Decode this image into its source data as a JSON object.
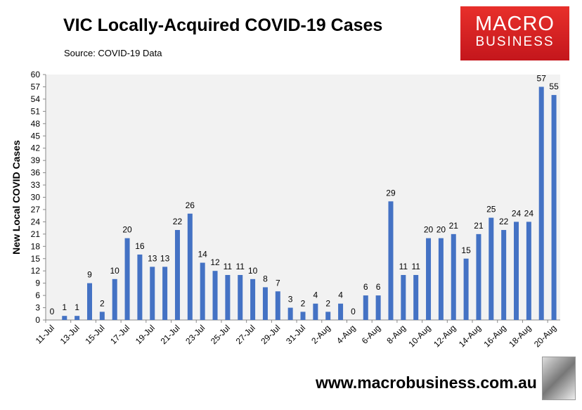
{
  "title": "VIC Locally-Acquired COVID-19 Cases",
  "source": "Source: COVID-19 Data",
  "logo": {
    "line1": "MACRO",
    "line2": "BUSINESS"
  },
  "url": "www.macrobusiness.com.au",
  "colors": {
    "bar": "#4472c4",
    "plot_bg": "#f2f2f2",
    "logo": "#d7261f"
  },
  "chart_data": {
    "type": "bar",
    "title": "VIC Locally-Acquired COVID-19 Cases",
    "ylabel": "New Local COVID Cases",
    "xlabel": "",
    "ylim": [
      0,
      60
    ],
    "ytick_step": 3,
    "grid": false,
    "categories": [
      "11-Jul",
      "12-Jul",
      "13-Jul",
      "14-Jul",
      "15-Jul",
      "16-Jul",
      "17-Jul",
      "18-Jul",
      "19-Jul",
      "20-Jul",
      "21-Jul",
      "22-Jul",
      "23-Jul",
      "24-Jul",
      "25-Jul",
      "26-Jul",
      "27-Jul",
      "28-Jul",
      "29-Jul",
      "30-Jul",
      "31-Jul",
      "1-Aug",
      "2-Aug",
      "3-Aug",
      "4-Aug",
      "5-Aug",
      "6-Aug",
      "7-Aug",
      "8-Aug",
      "9-Aug",
      "10-Aug",
      "11-Aug",
      "12-Aug",
      "13-Aug",
      "14-Aug",
      "15-Aug",
      "16-Aug",
      "17-Aug",
      "18-Aug",
      "19-Aug",
      "20-Aug"
    ],
    "values": [
      0,
      1,
      1,
      9,
      2,
      10,
      20,
      16,
      13,
      13,
      22,
      26,
      14,
      12,
      11,
      11,
      10,
      8,
      7,
      3,
      2,
      4,
      2,
      4,
      0,
      6,
      6,
      29,
      11,
      11,
      20,
      20,
      21,
      15,
      21,
      25,
      22,
      24,
      24,
      57,
      55
    ]
  }
}
